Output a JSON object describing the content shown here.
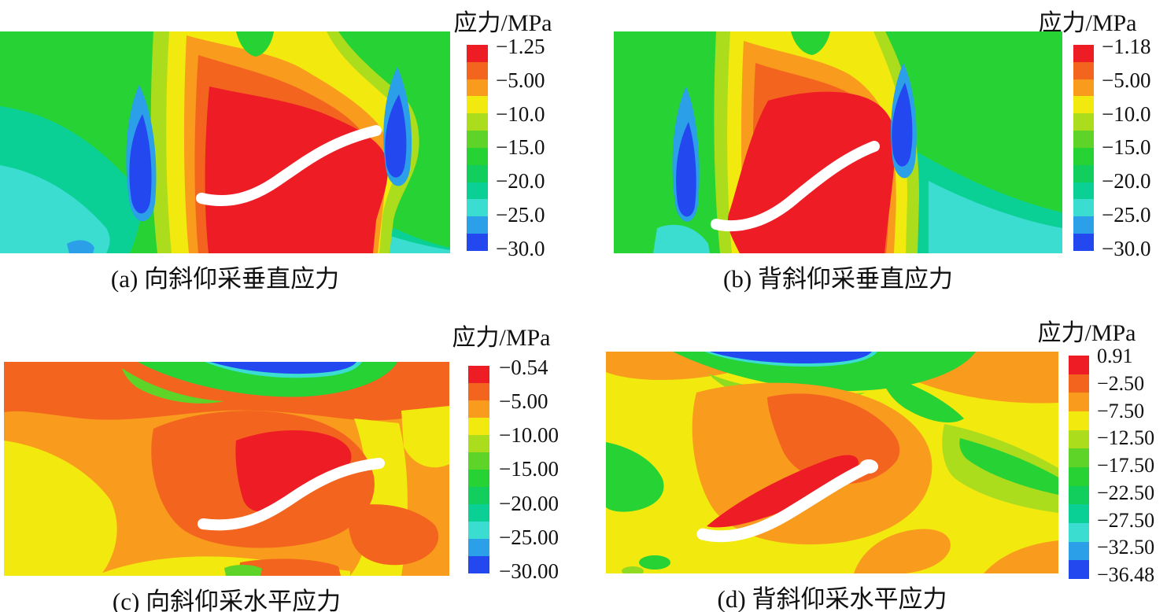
{
  "figure": {
    "type": "stress-contour-figure",
    "unit": "MPa"
  },
  "panels": [
    {
      "id": "a",
      "legend_title": "应力/MPa",
      "caption": "(a) 向斜仰采垂直应力",
      "scale_labels": [
        "−1.25",
        "−5.00",
        "−10.0",
        "−15.0",
        "−20.0",
        "−25.0",
        "−30.0"
      ]
    },
    {
      "id": "b",
      "legend_title": "应力/MPa",
      "caption": "(b) 背斜仰采垂直应力",
      "scale_labels": [
        "−1.18",
        "−5.00",
        "−10.0",
        "−15.0",
        "−20.0",
        "−25.0",
        "−30.0"
      ]
    },
    {
      "id": "c",
      "legend_title": "应力/MPa",
      "caption": "(c) 向斜仰采水平应力",
      "scale_labels": [
        "−0.54",
        "−5.00",
        "−10.00",
        "−15.00",
        "−20.00",
        "−25.00",
        "−30.00"
      ]
    },
    {
      "id": "d",
      "legend_title": "应力/MPa",
      "caption": "(d) 背斜仰采水平应力",
      "scale_labels": [
        "0.91",
        "−2.50",
        "−7.50",
        "−12.50",
        "−17.50",
        "−22.50",
        "−27.50",
        "−32.50",
        "−36.48"
      ]
    }
  ],
  "colorbar_colors": [
    "#EE1C25",
    "#F3641F",
    "#F99B1C",
    "#F2E90F",
    "#ABDD1D",
    "#5FD428",
    "#27D234",
    "#12CE5C",
    "#0BD096",
    "#3BDDD0",
    "#2B9FE8",
    "#2348F0"
  ],
  "chart_data": [
    {
      "type": "heatmap",
      "panel": "a",
      "title": "(a) 向斜仰采垂直应力",
      "legend_title": "应力/MPa",
      "contour_levels_mpa": [
        -1.25,
        -5.0,
        -10.0,
        -15.0,
        -20.0,
        -25.0,
        -30.0
      ],
      "value_range_mpa": [
        -30.0,
        -1.25
      ],
      "colormap": "rainbow, red = least compressive (−1.25 MPa), blue = most compressive (−30.0 MPa)",
      "features": "white S-shaped band marks the mined inclined seam; red stress-relief zone surrounds it; blue high-stress lobes flank both seam ends; green far field"
    },
    {
      "type": "heatmap",
      "panel": "b",
      "title": "(b) 背斜仰采垂直应力",
      "legend_title": "应力/MPa",
      "contour_levels_mpa": [
        -1.18,
        -5.0,
        -10.0,
        -15.0,
        -20.0,
        -25.0,
        -30.0
      ],
      "value_range_mpa": [
        -30.0,
        -1.18
      ],
      "colormap": "rainbow, red = least compressive (−1.18 MPa), blue = most compressive (−30.0 MPa)",
      "features": "white S-shaped seam band shifted left of centre; red relief zone around seam; blue abutment-stress lobes on both sides; cyan fan toward lower right"
    },
    {
      "type": "heatmap",
      "panel": "c",
      "title": "(c) 向斜仰采水平应力",
      "legend_title": "应力/MPa",
      "contour_levels_mpa": [
        -0.54,
        -5.0,
        -10.0,
        -15.0,
        -20.0,
        -25.0,
        -30.0
      ],
      "value_range_mpa": [
        -30.0,
        -0.54
      ],
      "colormap": "rainbow, red = least compressive (−0.54 MPa), blue = most compressive (−30.0 MPa)",
      "features": "orange/yellow field; blue high-horizontal-stress strip at ground surface (top centre) with green fringe; orange-red dome with red patch above the white seam band"
    },
    {
      "type": "heatmap",
      "panel": "d",
      "title": "(d) 背斜仰采水平应力",
      "legend_title": "应力/MPa",
      "contour_levels_mpa": [
        0.91,
        -2.5,
        -7.5,
        -12.5,
        -17.5,
        -22.5,
        -27.5,
        -32.5,
        -36.48
      ],
      "value_range_mpa": [
        -36.48,
        0.91
      ],
      "colormap": "rainbow, red = tensile/least compressive (0.91 MPa), blue = most compressive (−36.48 MPa)",
      "features": "yellow-green field; blue surface strip top centre; orange dome with red streaks along the upper side of the white seam band; green patches at flanks"
    }
  ]
}
